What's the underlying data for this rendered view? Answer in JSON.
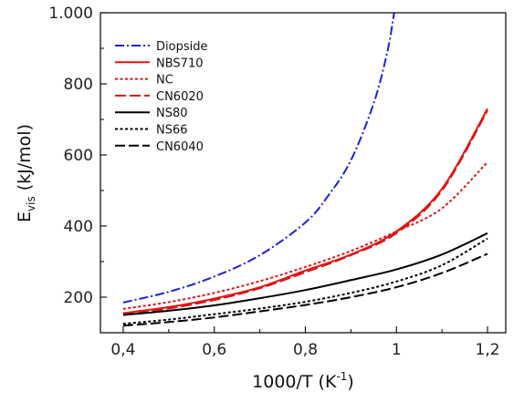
{
  "chart_data": {
    "type": "line",
    "title": "",
    "xlabel": {
      "main": "1000/T (K",
      "sup": "-1",
      "tail": ")"
    },
    "ylabel": {
      "main": "E",
      "sub": "vis",
      "tail": " (kJ/mol)"
    },
    "xlim": [
      0.35,
      1.24
    ],
    "ylim": [
      100,
      1000
    ],
    "xticks": [
      {
        "value": 0.4,
        "label": "0,4"
      },
      {
        "value": 0.6,
        "label": "0,6"
      },
      {
        "value": 0.8,
        "label": "0,8"
      },
      {
        "value": 1.0,
        "label": "1"
      },
      {
        "value": 1.2,
        "label": "1,2"
      }
    ],
    "yticks": [
      {
        "value": 200,
        "label": "200"
      },
      {
        "value": 400,
        "label": "400"
      },
      {
        "value": 600,
        "label": "600"
      },
      {
        "value": 800,
        "label": "800"
      },
      {
        "value": 1000,
        "label": "1.000"
      }
    ],
    "grid": false,
    "legend_position": "top-left",
    "series": [
      {
        "name": "Diopside",
        "color": "#1f1fd6",
        "dash": "dashdot",
        "x": [
          0.4,
          0.5,
          0.6,
          0.7,
          0.8,
          0.85,
          0.9,
          0.95,
          0.98,
          0.995
        ],
        "y": [
          185,
          215,
          258,
          318,
          410,
          485,
          585,
          745,
          890,
          1000
        ]
      },
      {
        "name": "NBS710",
        "color": "#e01414",
        "dash": "solid",
        "x": [
          0.4,
          0.5,
          0.6,
          0.7,
          0.8,
          0.9,
          1.0,
          1.1,
          1.2
        ],
        "y": [
          155,
          172,
          196,
          228,
          275,
          320,
          385,
          505,
          730
        ]
      },
      {
        "name": "NC",
        "color": "#e01414",
        "dash": "dotted",
        "x": [
          0.4,
          0.5,
          0.6,
          0.7,
          0.8,
          0.9,
          1.0,
          1.1,
          1.2
        ],
        "y": [
          167,
          186,
          212,
          245,
          285,
          330,
          385,
          450,
          580
        ]
      },
      {
        "name": "CN6020",
        "color": "#e01414",
        "dash": "dashed",
        "x": [
          0.4,
          0.5,
          0.6,
          0.7,
          0.8,
          0.9,
          1.0,
          1.1,
          1.2
        ],
        "y": [
          150,
          168,
          192,
          225,
          270,
          318,
          380,
          500,
          725
        ]
      },
      {
        "name": "NS80",
        "color": "#000000",
        "dash": "solid",
        "x": [
          0.4,
          0.5,
          0.6,
          0.7,
          0.8,
          0.9,
          1.0,
          1.1,
          1.2
        ],
        "y": [
          150,
          162,
          177,
          197,
          220,
          248,
          278,
          320,
          380
        ]
      },
      {
        "name": "NS66",
        "color": "#000000",
        "dash": "dotted",
        "x": [
          0.4,
          0.5,
          0.6,
          0.7,
          0.8,
          0.9,
          1.0,
          1.1,
          1.2
        ],
        "y": [
          125,
          137,
          152,
          168,
          187,
          212,
          244,
          290,
          365
        ]
      },
      {
        "name": "CN6040",
        "color": "#000000",
        "dash": "longdash",
        "x": [
          0.4,
          0.5,
          0.6,
          0.7,
          0.8,
          0.9,
          1.0,
          1.1,
          1.2
        ],
        "y": [
          120,
          130,
          143,
          160,
          178,
          200,
          228,
          268,
          322
        ]
      }
    ]
  }
}
